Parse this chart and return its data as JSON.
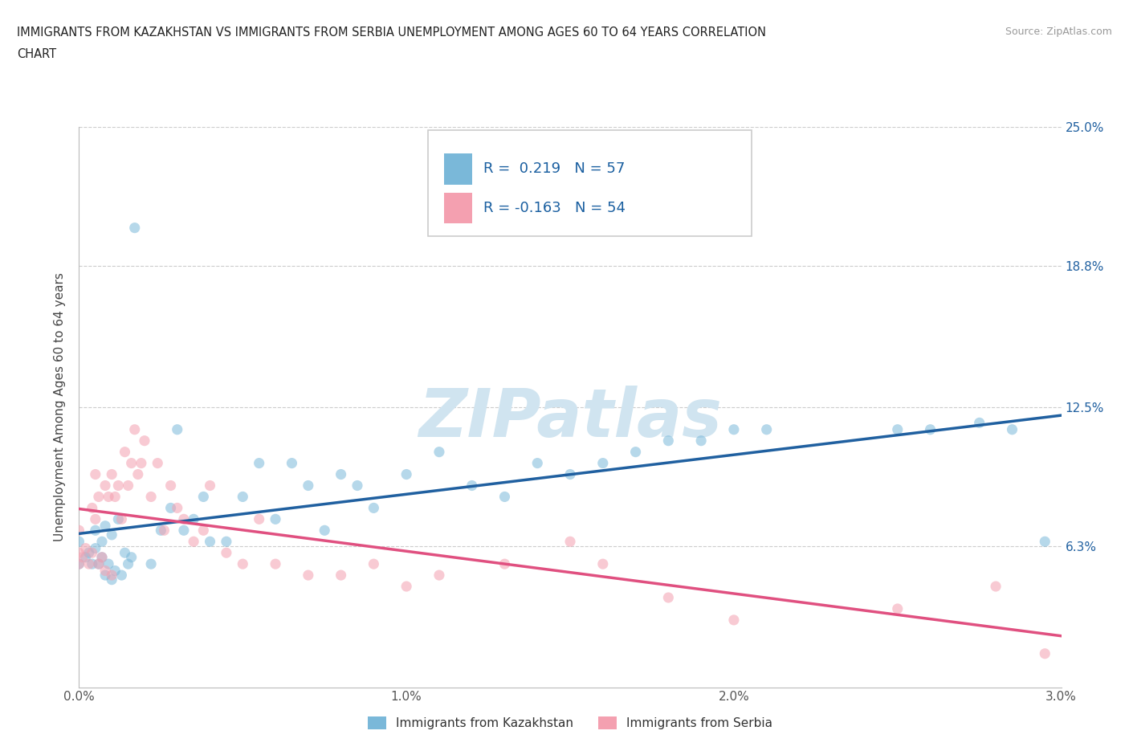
{
  "title_line1": "IMMIGRANTS FROM KAZAKHSTAN VS IMMIGRANTS FROM SERBIA UNEMPLOYMENT AMONG AGES 60 TO 64 YEARS CORRELATION",
  "title_line2": "CHART",
  "source": "Source: ZipAtlas.com",
  "ylabel": "Unemployment Among Ages 60 to 64 years",
  "xlim": [
    0.0,
    3.0
  ],
  "ylim": [
    0.0,
    25.0
  ],
  "x_ticks": [
    0.0,
    0.5,
    1.0,
    1.5,
    2.0,
    2.5,
    3.0
  ],
  "x_tick_labels": [
    "0.0%",
    "",
    "1.0%",
    "",
    "2.0%",
    "",
    "3.0%"
  ],
  "y_right_ticks": [
    0.0,
    6.3,
    12.5,
    18.8,
    25.0
  ],
  "y_right_labels": [
    "",
    "6.3%",
    "12.5%",
    "18.8%",
    "25.0%"
  ],
  "kazakhstan_color": "#7ab8d9",
  "serbia_color": "#f4a0b0",
  "kazakhstan_line_color": "#2060a0",
  "serbia_line_color": "#e05080",
  "r_kazakhstan": 0.219,
  "n_kazakhstan": 57,
  "r_serbia": -0.163,
  "n_serbia": 54,
  "watermark": "ZIPatlas",
  "watermark_color": "#d0e4f0",
  "legend_kazakhstan": "Immigrants from Kazakhstan",
  "legend_serbia": "Immigrants from Serbia",
  "kazakhstan_scatter_x": [
    0.0,
    0.0,
    0.02,
    0.03,
    0.04,
    0.05,
    0.05,
    0.06,
    0.07,
    0.07,
    0.08,
    0.08,
    0.09,
    0.1,
    0.1,
    0.11,
    0.12,
    0.13,
    0.14,
    0.15,
    0.16,
    0.17,
    0.22,
    0.25,
    0.28,
    0.3,
    0.32,
    0.35,
    0.38,
    0.4,
    0.45,
    0.5,
    0.55,
    0.6,
    0.65,
    0.7,
    0.75,
    0.8,
    0.85,
    0.9,
    1.0,
    1.1,
    1.2,
    1.3,
    1.4,
    1.5,
    1.6,
    1.7,
    1.8,
    1.9,
    2.0,
    2.1,
    2.5,
    2.6,
    2.75,
    2.85,
    2.95
  ],
  "kazakhstan_scatter_y": [
    5.5,
    6.5,
    5.8,
    6.0,
    5.5,
    6.2,
    7.0,
    5.5,
    5.8,
    6.5,
    5.0,
    7.2,
    5.5,
    4.8,
    6.8,
    5.2,
    7.5,
    5.0,
    6.0,
    5.5,
    5.8,
    20.5,
    5.5,
    7.0,
    8.0,
    11.5,
    7.0,
    7.5,
    8.5,
    6.5,
    6.5,
    8.5,
    10.0,
    7.5,
    10.0,
    9.0,
    7.0,
    9.5,
    9.0,
    8.0,
    9.5,
    10.5,
    9.0,
    8.5,
    10.0,
    9.5,
    10.0,
    10.5,
    11.0,
    11.0,
    11.5,
    11.5,
    11.5,
    11.5,
    11.8,
    11.5,
    6.5
  ],
  "serbia_scatter_x": [
    0.0,
    0.0,
    0.0,
    0.01,
    0.02,
    0.03,
    0.04,
    0.04,
    0.05,
    0.05,
    0.06,
    0.06,
    0.07,
    0.08,
    0.08,
    0.09,
    0.1,
    0.1,
    0.11,
    0.12,
    0.13,
    0.14,
    0.15,
    0.16,
    0.17,
    0.18,
    0.19,
    0.2,
    0.22,
    0.24,
    0.26,
    0.28,
    0.3,
    0.32,
    0.35,
    0.38,
    0.4,
    0.45,
    0.5,
    0.55,
    0.6,
    0.7,
    0.8,
    0.9,
    1.0,
    1.1,
    1.3,
    1.5,
    1.6,
    1.8,
    2.0,
    2.5,
    2.8,
    2.95
  ],
  "serbia_scatter_y": [
    5.5,
    6.0,
    7.0,
    5.8,
    6.2,
    5.5,
    6.0,
    8.0,
    7.5,
    9.5,
    5.5,
    8.5,
    5.8,
    5.2,
    9.0,
    8.5,
    5.0,
    9.5,
    8.5,
    9.0,
    7.5,
    10.5,
    9.0,
    10.0,
    11.5,
    9.5,
    10.0,
    11.0,
    8.5,
    10.0,
    7.0,
    9.0,
    8.0,
    7.5,
    6.5,
    7.0,
    9.0,
    6.0,
    5.5,
    7.5,
    5.5,
    5.0,
    5.0,
    5.5,
    4.5,
    5.0,
    5.5,
    6.5,
    5.5,
    4.0,
    3.0,
    3.5,
    4.5,
    1.5
  ]
}
